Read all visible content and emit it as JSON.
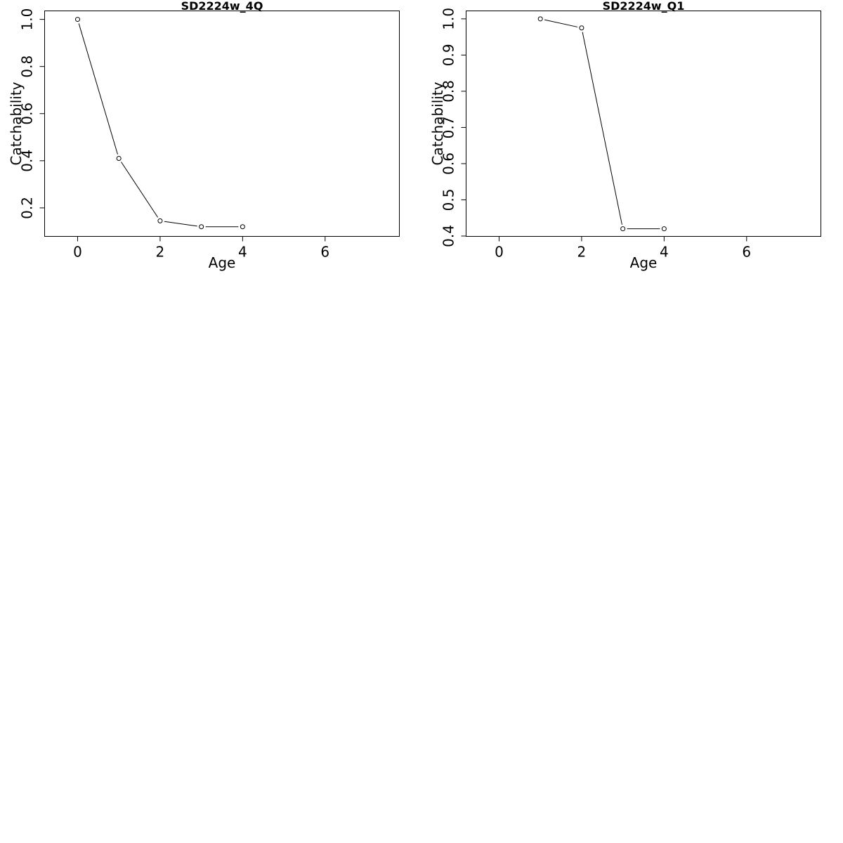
{
  "chart_data": [
    {
      "type": "line",
      "title": "SD2224w_4Q",
      "xlabel": "Age",
      "ylabel": "Catchability",
      "xlim": [
        -0.8,
        7.8
      ],
      "ylim": [
        0.079,
        1.036
      ],
      "xticks": [
        0,
        2,
        4,
        6
      ],
      "yticks": [
        0.2,
        0.4,
        0.6,
        0.8,
        1.0
      ],
      "xtick_labels": [
        "0",
        "2",
        "4",
        "6"
      ],
      "ytick_labels": [
        "0.2",
        "0.4",
        "0.6",
        "0.8",
        "1.0"
      ],
      "grid": false,
      "markers": "open-circle",
      "line_color": "#000000",
      "series": [
        {
          "x": [
            0,
            1,
            2,
            3,
            4
          ],
          "y": [
            1.0,
            0.41,
            0.145,
            0.12,
            0.12
          ]
        }
      ]
    },
    {
      "type": "line",
      "title": "SD2224w_Q1",
      "xlabel": "Age",
      "ylabel": "Catchability",
      "xlim": [
        -0.8,
        7.8
      ],
      "ylim": [
        0.399,
        1.022
      ],
      "xticks": [
        0,
        2,
        4,
        6
      ],
      "yticks": [
        0.4,
        0.5,
        0.6,
        0.7,
        0.8,
        0.9,
        1.0
      ],
      "xtick_labels": [
        "0",
        "2",
        "4",
        "6"
      ],
      "ytick_labels": [
        "0.4",
        "0.5",
        "0.6",
        "0.7",
        "0.8",
        "0.9",
        "1.0"
      ],
      "grid": false,
      "markers": "open-circle",
      "line_color": "#000000",
      "series": [
        {
          "x": [
            1,
            2,
            3,
            4
          ],
          "y": [
            1.0,
            0.975,
            0.42,
            0.42
          ]
        }
      ]
    }
  ]
}
